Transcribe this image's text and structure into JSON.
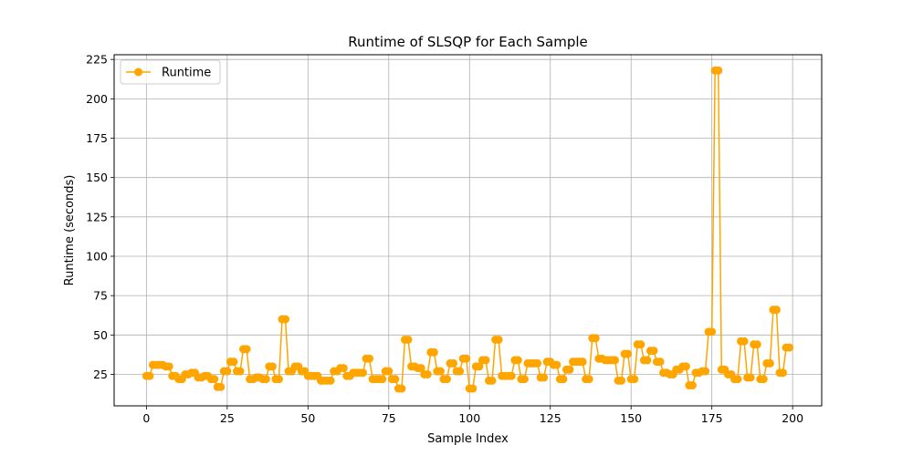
{
  "chart_data": {
    "type": "line",
    "title": "Runtime of SLSQP for Each Sample",
    "xlabel": "Sample Index",
    "ylabel": "Runtime (seconds)",
    "xlim": [
      -10,
      209
    ],
    "ylim": [
      5,
      228
    ],
    "xticks": [
      0,
      25,
      50,
      75,
      100,
      125,
      150,
      175,
      200
    ],
    "yticks": [
      25,
      50,
      75,
      100,
      125,
      150,
      175,
      200,
      225
    ],
    "grid": true,
    "legend_position": "top-left",
    "color": "#FFA500",
    "marker": "circle",
    "series": [
      {
        "name": "Runtime",
        "x": [
          0,
          1,
          2,
          3,
          4,
          5,
          6,
          7,
          8,
          9,
          10,
          11,
          12,
          13,
          14,
          15,
          16,
          17,
          18,
          19,
          20,
          21,
          22,
          23,
          24,
          25,
          26,
          27,
          28,
          29,
          30,
          31,
          32,
          33,
          34,
          35,
          36,
          37,
          38,
          39,
          40,
          41,
          42,
          43,
          44,
          45,
          46,
          47,
          48,
          49,
          50,
          51,
          52,
          53,
          54,
          55,
          56,
          57,
          58,
          59,
          60,
          61,
          62,
          63,
          64,
          65,
          66,
          67,
          68,
          69,
          70,
          71,
          72,
          73,
          74,
          75,
          76,
          77,
          78,
          79,
          80,
          81,
          82,
          83,
          84,
          85,
          86,
          87,
          88,
          89,
          90,
          91,
          92,
          93,
          94,
          95,
          96,
          97,
          98,
          99,
          100,
          101,
          102,
          103,
          104,
          105,
          106,
          107,
          108,
          109,
          110,
          111,
          112,
          113,
          114,
          115,
          116,
          117,
          118,
          119,
          120,
          121,
          122,
          123,
          124,
          125,
          126,
          127,
          128,
          129,
          130,
          131,
          132,
          133,
          134,
          135,
          136,
          137,
          138,
          139,
          140,
          141,
          142,
          143,
          144,
          145,
          146,
          147,
          148,
          149,
          150,
          151,
          152,
          153,
          154,
          155,
          156,
          157,
          158,
          159,
          160,
          161,
          162,
          163,
          164,
          165,
          166,
          167,
          168,
          169,
          170,
          171,
          172,
          173,
          174,
          175,
          176,
          177,
          178,
          179,
          180,
          181,
          182,
          183,
          184,
          185,
          186,
          187,
          188,
          189,
          190,
          191,
          192,
          193,
          194,
          195,
          196,
          197,
          198,
          199
        ],
        "values": [
          24,
          24,
          31,
          31,
          31,
          31,
          30,
          30,
          24,
          24,
          22,
          22,
          25,
          25,
          26,
          26,
          23,
          23,
          24,
          24,
          22,
          22,
          17,
          17,
          27,
          27,
          33,
          33,
          27,
          27,
          41,
          41,
          22,
          22,
          23,
          23,
          22,
          22,
          30,
          30,
          22,
          22,
          60,
          60,
          27,
          27,
          30,
          30,
          27,
          27,
          24,
          24,
          24,
          24,
          21,
          21,
          21,
          21,
          27,
          27,
          29,
          29,
          24,
          24,
          26,
          26,
          26,
          26,
          35,
          35,
          22,
          22,
          22,
          22,
          27,
          27,
          22,
          22,
          16,
          16,
          47,
          47,
          30,
          30,
          29,
          29,
          25,
          25,
          39,
          39,
          27,
          27,
          22,
          22,
          32,
          32,
          27,
          27,
          35,
          35,
          16,
          16,
          30,
          30,
          34,
          34,
          21,
          21,
          47,
          47,
          24,
          24,
          24,
          24,
          34,
          34,
          22,
          22,
          32,
          32,
          32,
          32,
          23,
          23,
          33,
          33,
          31,
          31,
          22,
          22,
          28,
          28,
          33,
          33,
          33,
          33,
          22,
          22,
          48,
          48,
          35,
          35,
          34,
          34,
          34,
          34,
          21,
          21,
          38,
          38,
          22,
          22,
          44,
          44,
          34,
          34,
          40,
          40,
          33,
          33,
          26,
          26,
          25,
          25,
          28,
          28,
          30,
          30,
          18,
          18,
          26,
          26,
          27,
          27,
          52,
          52,
          218,
          218,
          28,
          28,
          25,
          25,
          22,
          22,
          46,
          46,
          23,
          23,
          44,
          44,
          22,
          22,
          32,
          32,
          66,
          66,
          26,
          26,
          42,
          42
        ]
      }
    ]
  }
}
